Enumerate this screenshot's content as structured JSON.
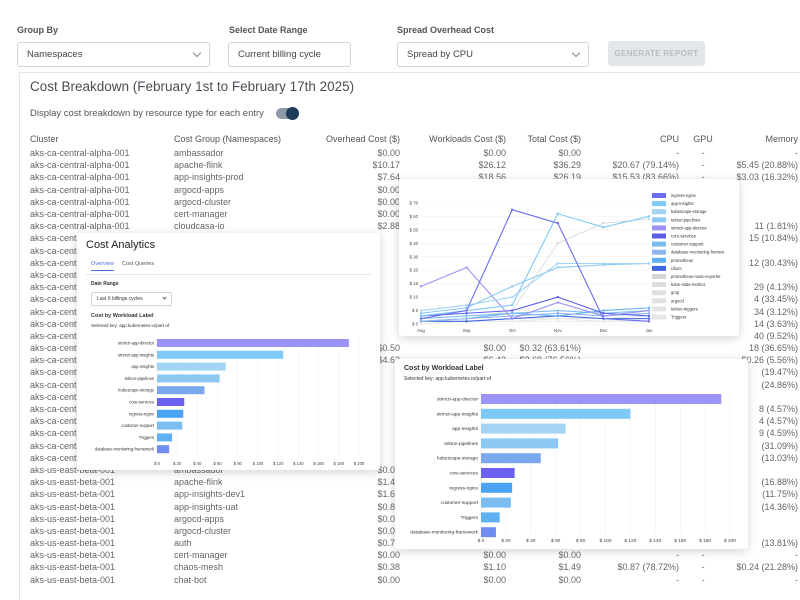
{
  "controls": {
    "group_by_label": "Group By",
    "group_by_value": "Namespaces",
    "date_range_label": "Select Date Range",
    "date_range_value": "Current billing cycle",
    "spread_label": "Spread Overhead Cost",
    "spread_value": "Spread by CPU",
    "generate_label": "GENERATE REPORT"
  },
  "breakdown": {
    "title": "Cost Breakdown (February 1st to February 17th 2025)",
    "toggle_label": "Display cost breakdown by resource type for each entry",
    "columns": [
      "Cluster",
      "Cost Group (Namespaces)",
      "Overhead Cost ($)",
      "Workloads Cost ($)",
      "Total Cost ($)",
      "CPU",
      "GPU",
      "Memory"
    ],
    "rows": [
      [
        "aks-ca-central-alpha-001",
        "ambassador",
        "$0.00",
        "$0.00",
        "$0.00",
        "-",
        "-",
        "-"
      ],
      [
        "aks-ca-central-alpha-001",
        "apache-flink",
        "$10.17",
        "$26.12",
        "$36.29",
        "$20.67 (79.14%)",
        "-",
        "$5.45 (20.88%)"
      ],
      [
        "aks-ca-central-alpha-001",
        "app-insights-prod",
        "$7.64",
        "$18.56",
        "$26.19",
        "$15.53 (83.66%)",
        "-",
        "$3.03 (16.32%)"
      ],
      [
        "aks-ca-central-alpha-001",
        "argocd-apps",
        "$0.00",
        "",
        "",
        "",
        "",
        ""
      ],
      [
        "aks-ca-central-alpha-001",
        "argocd-cluster",
        "$0.00",
        "",
        "",
        "",
        "",
        ""
      ],
      [
        "aks-ca-central-alpha-001",
        "cert-manager",
        "$0.00",
        "",
        "",
        "",
        "",
        ""
      ],
      [
        "aks-ca-central-alpha-001",
        "cloudcasa-io",
        "$2.88",
        "",
        "",
        "",
        "",
        "11 (1.81%)"
      ],
      [
        "aks-ca-cent",
        "",
        "",
        "",
        "",
        "",
        "",
        "15 (10.84%)"
      ],
      [
        "aks-ca-cent",
        "",
        "",
        "",
        "",
        "",
        "",
        ""
      ],
      [
        "aks-ca-cent",
        "",
        "",
        "",
        "",
        "",
        "",
        "12 (30.43%)"
      ],
      [
        "aks-ca-cent",
        "",
        "",
        "",
        "",
        "",
        "",
        ""
      ],
      [
        "aks-ca-cent",
        "",
        "",
        "",
        "",
        "",
        "",
        "29 (4.13%)"
      ],
      [
        "aks-ca-cent",
        "",
        "",
        "",
        "",
        "",
        "",
        "4 (33.45%)"
      ],
      [
        "aks-ca-cent",
        "",
        "",
        "",
        "",
        "",
        "",
        "34 (3.12%)"
      ],
      [
        "aks-ca-cent",
        "",
        "",
        "",
        "",
        "",
        "",
        "14 (3.63%)"
      ],
      [
        "aks-ca-cent",
        "",
        "",
        "",
        "",
        "",
        "",
        "40 (9.52%)"
      ],
      [
        "aks-ca-cent",
        "",
        "$0.50",
        "$0.00",
        "$0.32 (63.61%)",
        "",
        "",
        "18 (36.65%)"
      ],
      [
        "aks-ca-cent",
        "",
        "$4.62",
        "$6.42",
        "$3.69 (76.56%)",
        "",
        "",
        "$0.26 (5.56%)"
      ],
      [
        "aks-ca-cent",
        "",
        "",
        "",
        "",
        "",
        "",
        "(19.47%)"
      ],
      [
        "aks-ca-cent",
        "",
        "",
        "",
        "",
        "",
        "",
        "(24.86%)"
      ],
      [
        "aks-ca-cent",
        "",
        "",
        "",
        "",
        "",
        "",
        ""
      ],
      [
        "aks-ca-cent",
        "",
        "",
        "",
        "",
        "",
        "",
        "8 (4.57%)"
      ],
      [
        "aks-ca-cent",
        "",
        "",
        "",
        "",
        "",
        "",
        "4 (4.57%)"
      ],
      [
        "aks-ca-cent",
        "",
        "",
        "",
        "",
        "",
        "",
        "9 (4.59%)"
      ],
      [
        "aks-ca-cent",
        "",
        "",
        "",
        "",
        "",
        "",
        "(31.09%)"
      ],
      [
        "aks-ca-cent",
        "",
        "",
        "",
        "",
        "",
        "",
        "(13.03%)"
      ],
      [
        "aks-us-east-beta-001",
        "ambassador",
        "$0.00",
        "",
        "",
        "",
        "",
        ""
      ],
      [
        "aks-us-east-beta-001",
        "apache-flink",
        "$1.48",
        "",
        "",
        "",
        "",
        "(16.88%)"
      ],
      [
        "aks-us-east-beta-001",
        "app-insights-dev1",
        "$1.63",
        "",
        "",
        "",
        "",
        "(11.75%)"
      ],
      [
        "aks-us-east-beta-001",
        "app-insights-uat",
        "$0.89",
        "",
        "",
        "",
        "",
        "(14.36%)"
      ],
      [
        "aks-us-east-beta-001",
        "argocd-apps",
        "$0.00",
        "",
        "",
        "",
        "",
        ""
      ],
      [
        "aks-us-east-beta-001",
        "argocd-cluster",
        "$0.00",
        "",
        "",
        "",
        "",
        ""
      ],
      [
        "aks-us-east-beta-001",
        "auth",
        "$0.71",
        "",
        "",
        "",
        "",
        "(13.81%)"
      ],
      [
        "aks-us-east-beta-001",
        "cert-manager",
        "$0.00",
        "$0.00",
        "$0.00",
        "-",
        "-",
        "-"
      ],
      [
        "aks-us-east-beta-001",
        "chaos-mesh",
        "$0.38",
        "$1.10",
        "$1.49",
        "$0.87 (78.72%)",
        "-",
        "$0.24 (21.28%)"
      ],
      [
        "aks-us-east-beta-001",
        "chat-bot",
        "$0.00",
        "$0.00",
        "$0.00",
        "-",
        "-",
        "-"
      ]
    ]
  },
  "analytics": {
    "title": "Cost Analytics",
    "tabs": [
      "Overview",
      "Cost Queries"
    ],
    "date_range_label": "Date Range",
    "date_range_value": "Last 6 billings cycles",
    "chart_title": "Cost by Workload Label",
    "selected_key": "Selected key: app.kubernetes.io/part-of"
  },
  "bar_chart_2": {
    "title": "Cost by Workload Label",
    "selected_key": "Selected key: app.kubernetes.io/part-of"
  },
  "chart_data": [
    {
      "type": "bar",
      "orientation": "horizontal",
      "title": "Cost by Workload Label",
      "categories": [
        "strimzi-app-director",
        "strimzi-app-insights",
        "app-insights",
        "tekton-pipelines",
        "kubescape-storage",
        "core-services",
        "ingress-nginx",
        "customer-support",
        "Triggers",
        "database-monitoring-framework"
      ],
      "values": [
        190,
        125,
        68,
        62,
        47,
        27,
        26,
        25,
        15,
        12
      ],
      "colors": [
        "#9b93f5",
        "#7ec9f7",
        "#a3d4f4",
        "#8bc9f2",
        "#7aa7ee",
        "#6a61f0",
        "#4aa3f3",
        "#7bbcf1",
        "#5fb1f3",
        "#6f8ef0"
      ],
      "xlim": [
        0,
        200
      ],
      "xticks": [
        "$ 0",
        "$ 20",
        "$ 40",
        "$ 60",
        "$ 80",
        "$ 100",
        "$ 120",
        "$ 140",
        "$ 160",
        "$ 180",
        "$ 200"
      ]
    },
    {
      "type": "line",
      "categories": [
        "Aug",
        "Sep",
        "Oct",
        "Nov",
        "Dec",
        "Jan"
      ],
      "ylim": [
        0,
        70
      ],
      "yticks": [
        "$ 0",
        "$ 5",
        "$ 10",
        "$ 15",
        "$ 20",
        "$ 30",
        "$ 40",
        "$ 50",
        "$ 60",
        "$ 70"
      ],
      "series": [
        {
          "name": "ingress-nginx",
          "color": "#6a6cf0",
          "values": [
            2,
            5,
            65,
            55,
            2,
            1
          ]
        },
        {
          "name": "app-insights",
          "color": "#7ec9f7",
          "values": [
            3,
            5,
            7,
            62,
            52,
            60
          ]
        },
        {
          "name": "kubescape-storage",
          "color": "#a3d4f4",
          "values": [
            5,
            7,
            10,
            25,
            25,
            25
          ]
        },
        {
          "name": "tekton-pipelines",
          "color": "#8bc9f2",
          "values": [
            4,
            6,
            14,
            22,
            24,
            25
          ]
        },
        {
          "name": "strimzi-app-director",
          "color": "#9b93f5",
          "values": [
            14,
            22,
            2,
            8,
            3,
            5
          ]
        },
        {
          "name": "core-services",
          "color": "#5b5fe8",
          "values": [
            3,
            4,
            5,
            10,
            4,
            3
          ]
        },
        {
          "name": "customer-support",
          "color": "#7bbcf1",
          "values": [
            2,
            3,
            4,
            5,
            4,
            5
          ]
        },
        {
          "name": "database-monitoring-framew",
          "color": "#90b5ee",
          "values": [
            1,
            2,
            3,
            4,
            3,
            4
          ]
        },
        {
          "name": "prometheus",
          "color": "#5fb1f3",
          "values": [
            1,
            2,
            4,
            3,
            5,
            6
          ]
        },
        {
          "name": "cilium",
          "color": "#3f67e0",
          "values": [
            1,
            1,
            2,
            3,
            2,
            2
          ]
        },
        {
          "name": "prometheus-node-exporter",
          "color": "#d6d6d6",
          "values": [
            1,
            2,
            5,
            40,
            55,
            58
          ]
        },
        {
          "name": "kube-state-metrics",
          "color": "#dcdcdc",
          "values": [
            1,
            2,
            3,
            4,
            3,
            4
          ]
        },
        {
          "name": "gmp",
          "color": "#e0e0e0",
          "values": [
            1,
            1,
            2,
            3,
            2,
            3
          ]
        },
        {
          "name": "argocd",
          "color": "#e2e2e2",
          "values": [
            1,
            1,
            2,
            2,
            2,
            2
          ]
        },
        {
          "name": "tekton-triggers",
          "color": "#e4e4e4",
          "values": [
            1,
            1,
            1,
            2,
            1,
            2
          ]
        },
        {
          "name": "Triggers",
          "color": "#e6e6e6",
          "values": [
            0,
            1,
            1,
            1,
            1,
            1
          ]
        }
      ]
    },
    {
      "type": "bar",
      "orientation": "horizontal",
      "title": "Cost by Workload Label",
      "categories": [
        "strimzi-app-director",
        "strimzi-app-insights",
        "app-insights",
        "tekton-pipelines",
        "kubescape-storage",
        "core-services",
        "ingress-nginx",
        "customer-support",
        "Triggers",
        "database-monitoring-framework"
      ],
      "values": [
        193,
        120,
        68,
        62,
        48,
        27,
        25,
        24,
        15,
        12
      ],
      "colors": [
        "#9b93f5",
        "#7ec9f7",
        "#a3d4f4",
        "#8bc9f2",
        "#7aa7ee",
        "#6a61f0",
        "#4aa3f3",
        "#7bbcf1",
        "#5fb1f3",
        "#6f8ef0"
      ],
      "xlim": [
        0,
        200
      ],
      "xticks": [
        "$ 0",
        "$ 20",
        "$ 40",
        "$ 60",
        "$ 80",
        "$ 100",
        "$ 120",
        "$ 140",
        "$ 160",
        "$ 180",
        "$ 200"
      ]
    }
  ]
}
